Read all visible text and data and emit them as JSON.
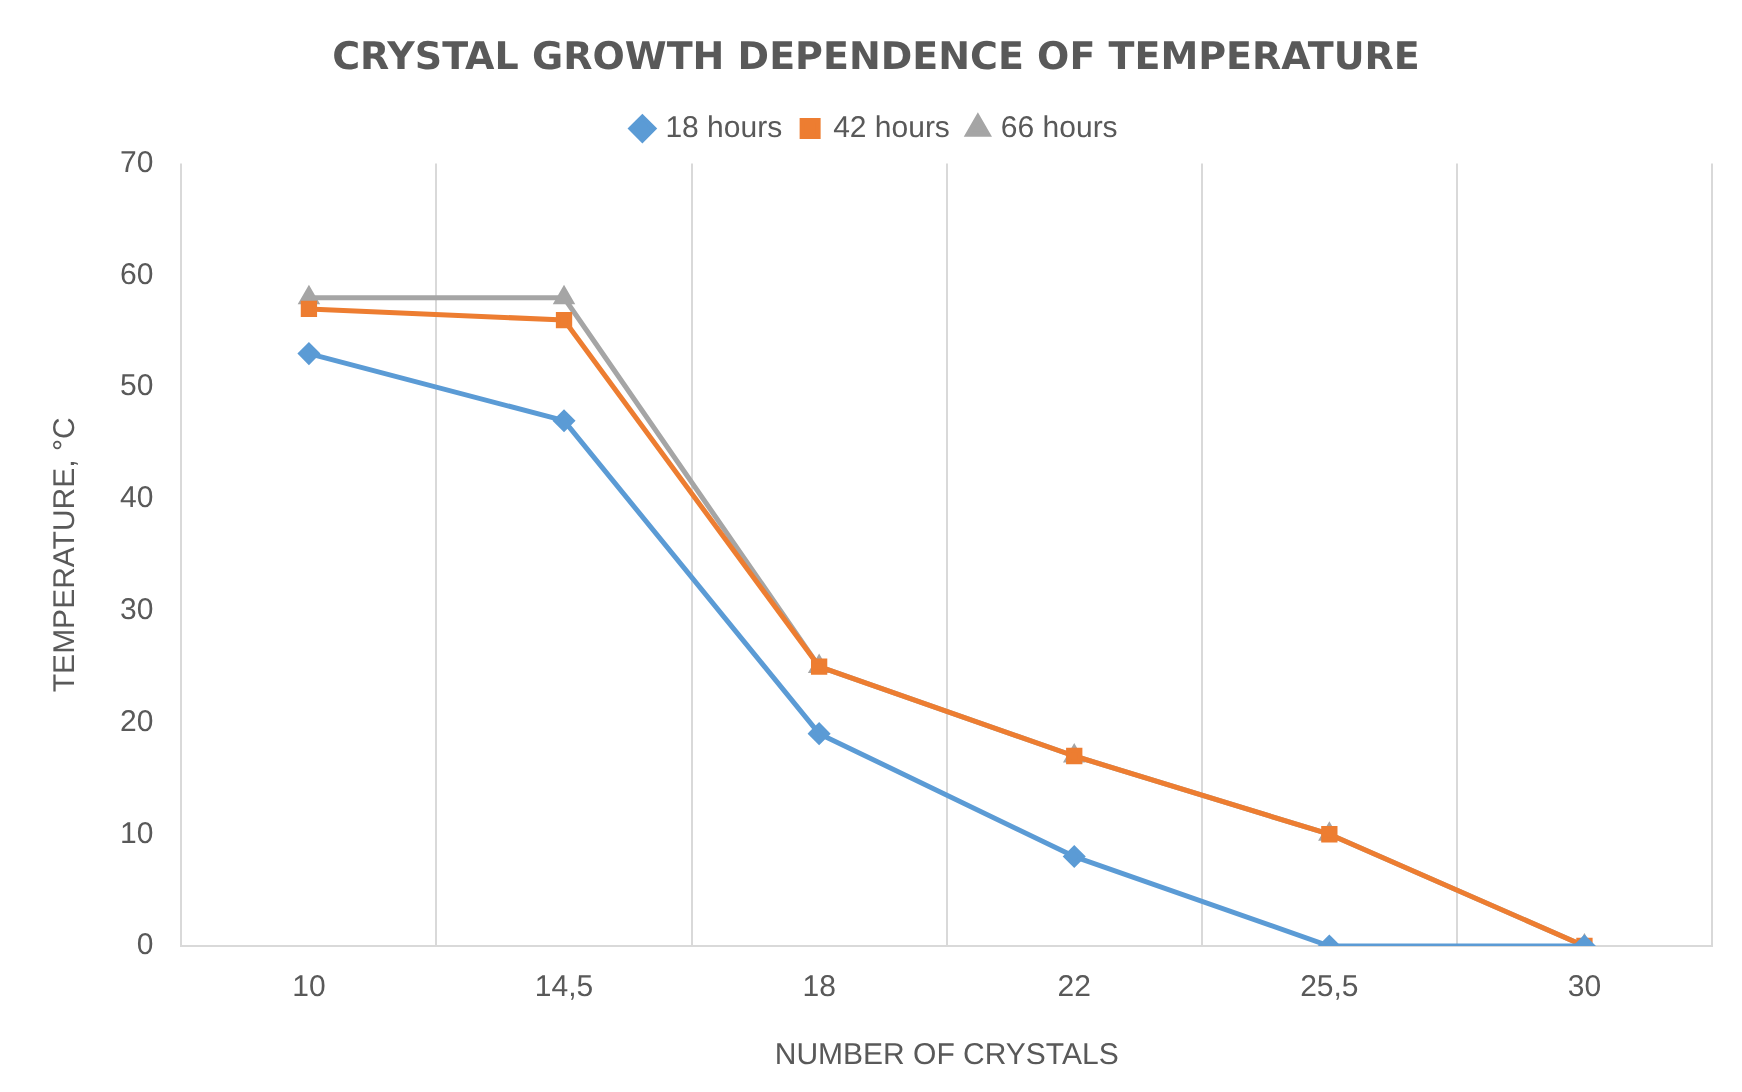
{
  "chart_data": {
    "type": "line",
    "title": "CRYSTAL GROWTH DEPENDENCE OF TEMPERATURE",
    "xlabel": "NUMBER OF CRYSTALS",
    "ylabel": "TEMPERATURE, °C",
    "categories": [
      "10",
      "14,5",
      "18",
      "22",
      "25,5",
      "30"
    ],
    "series": [
      {
        "name": "18 hours",
        "color": "#5b9bd5",
        "marker": "diamond",
        "values": [
          53,
          47,
          19,
          8,
          0,
          0
        ]
      },
      {
        "name": "42 hours",
        "color": "#ed7d31",
        "marker": "square",
        "values": [
          57,
          56,
          25,
          17,
          10,
          0
        ]
      },
      {
        "name": "66 hours",
        "color": "#a5a5a5",
        "marker": "triangle",
        "values": [
          58,
          58,
          25,
          17,
          10,
          0
        ]
      }
    ],
    "ylim": [
      0,
      70
    ],
    "yticks": [
      0,
      10,
      20,
      30,
      40,
      50,
      60,
      70
    ],
    "grid": "x",
    "legend": "top",
    "line_style": "solid"
  }
}
